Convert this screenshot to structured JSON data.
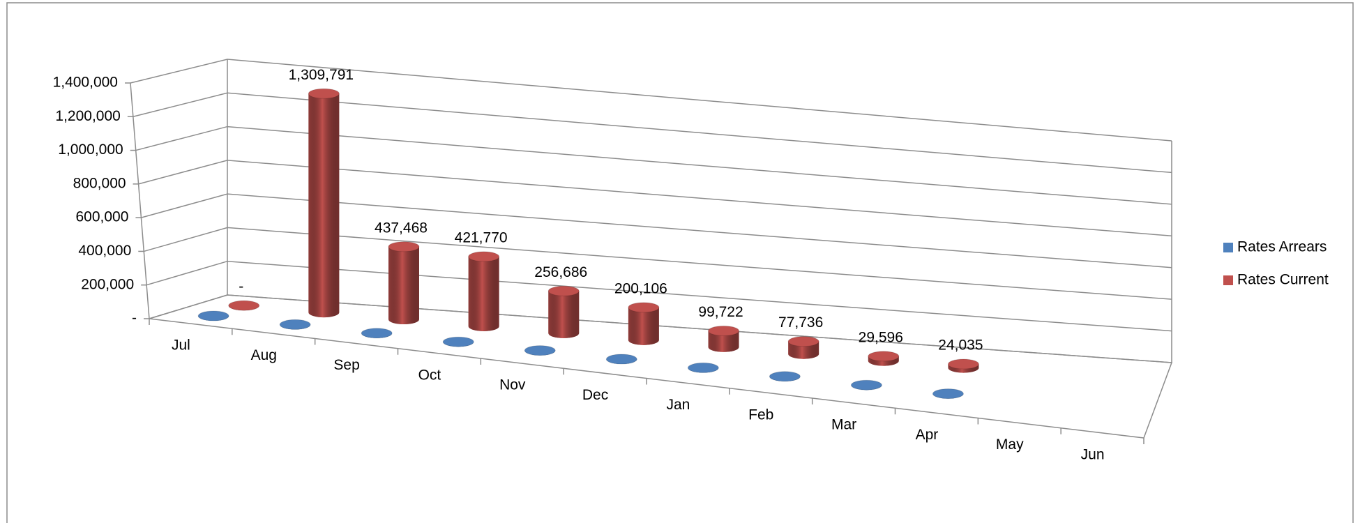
{
  "chart_data": {
    "type": "cylinder3d",
    "categories": [
      "Jul",
      "Aug",
      "Sep",
      "Oct",
      "Nov",
      "Dec",
      "Jan",
      "Feb",
      "Mar",
      "Apr",
      "May",
      "Jun"
    ],
    "series": [
      {
        "name": "Rates Arrears",
        "color": "#4f81bd",
        "values": [
          0,
          0,
          0,
          0,
          0,
          0,
          0,
          0,
          0,
          0,
          null,
          null
        ]
      },
      {
        "name": "Rates Current",
        "color": "#c0504d",
        "values": [
          0,
          1309791,
          437468,
          421770,
          256686,
          200106,
          99722,
          77736,
          29596,
          24035,
          null,
          null
        ],
        "value_labels": [
          "-",
          "1,309,791",
          "437,468",
          "421,770",
          "256,686",
          "200,106",
          "99,722",
          "77,736",
          "29,596",
          "24,035",
          null,
          null
        ]
      }
    ],
    "ylim": [
      0,
      1400000
    ],
    "yticks": [
      {
        "value": 0,
        "label": "-"
      },
      {
        "value": 200000,
        "label": "200,000"
      },
      {
        "value": 400000,
        "label": "400,000"
      },
      {
        "value": 600000,
        "label": "600,000"
      },
      {
        "value": 800000,
        "label": "800,000"
      },
      {
        "value": 1000000,
        "label": "1,000,000"
      },
      {
        "value": 1200000,
        "label": "1,200,000"
      },
      {
        "value": 1400000,
        "label": "1,400,000"
      }
    ],
    "grid": true,
    "legend": "right"
  }
}
